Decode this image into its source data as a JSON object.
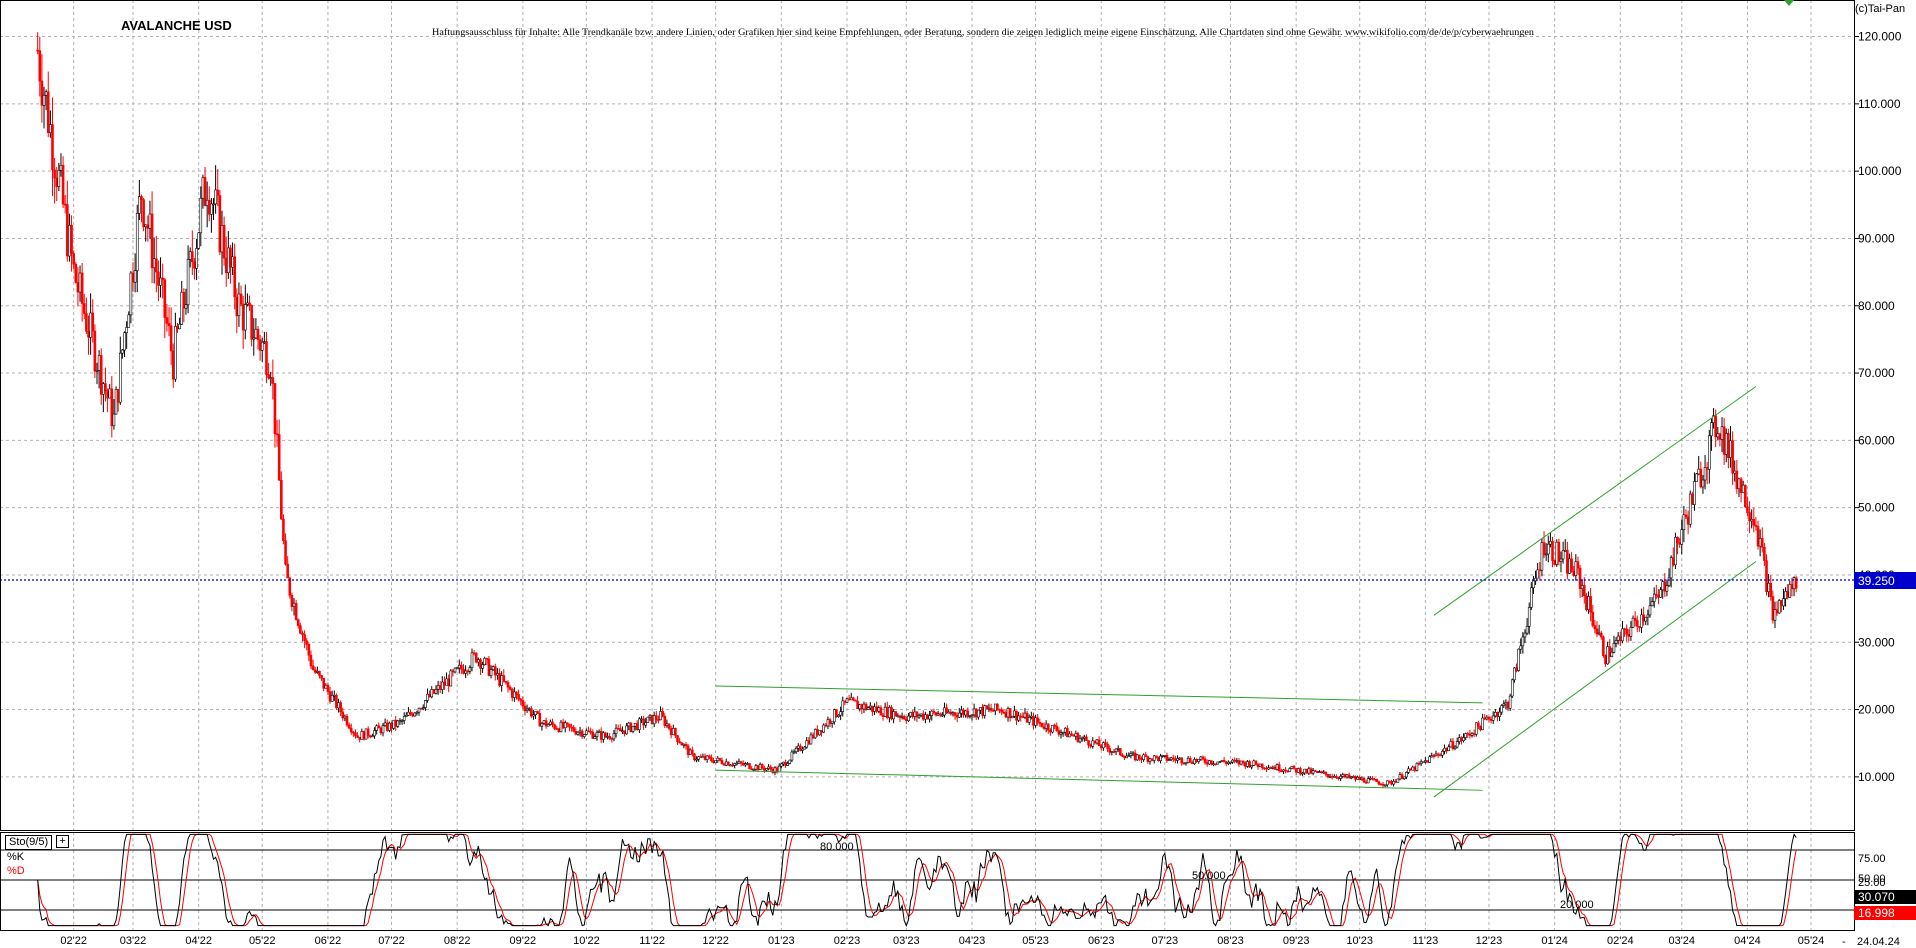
{
  "header": {
    "title": "AVALANCHE USD",
    "disclaimer": "Haftungsausschluss für Inhalte: Alle Trendkanäle bzw. andere Linien, oder Grafiken hier sind keine Empfehlungen, oder Beratung, sondern die zeigen lediglich meine eigene Einschätzung. Alle Chartdaten sind ohne Gewähr.  www.wikifolio.com/de/de/p/cyberwaehrungen",
    "copyright": "(c)Tai-Pan"
  },
  "colors": {
    "up_candle": "#000000",
    "down_candle": "#ff0000",
    "channel": "#2ea02e",
    "price_line": "#0000cc",
    "price_badge": "#0000cc",
    "k_line": "#000000",
    "d_line": "#ff0000",
    "k_badge": "#000000",
    "d_badge": "#ff0000"
  },
  "price_axis": {
    "ticks": [
      "10.000",
      "20.000",
      "30.000",
      "40.000",
      "50.000",
      "60.000",
      "70.000",
      "80.000",
      "90.000",
      "100.000",
      "110.000",
      "120.000"
    ]
  },
  "last_price": "39.250",
  "date_axis": {
    "ticks": [
      "02'22",
      "03'22",
      "04'22",
      "05'22",
      "06'22",
      "07'22",
      "08'22",
      "09'22",
      "10'22",
      "11'22",
      "12'22",
      "01'23",
      "02'23",
      "03'23",
      "04'23",
      "05'23",
      "06'23",
      "07'23",
      "08'23",
      "09'23",
      "10'23",
      "11'23",
      "12'23",
      "01'24",
      "02'24",
      "03'24",
      "04'24",
      "05'24"
    ],
    "current_date": "24.04.24",
    "separator": "-"
  },
  "stochastic": {
    "label": "Sto(9/5)",
    "button": "+",
    "k_label": "%K",
    "d_label": "%D",
    "k_value": "30.070",
    "d_value": "16.998",
    "axis_ticks": [
      "25.00",
      "50.00",
      "75.00"
    ],
    "level_labels": [
      "80.000",
      "50.000",
      "20.000"
    ]
  },
  "chart_data": {
    "type": "candlestick",
    "title": "AVALANCHE USD",
    "ylim": [
      0,
      125
    ],
    "grid": true,
    "key_points": [
      {
        "date": "2022-01-15",
        "close": 118
      },
      {
        "date": "2022-02-01",
        "close": 85
      },
      {
        "date": "2022-02-20",
        "close": 63
      },
      {
        "date": "2022-03-05",
        "close": 97
      },
      {
        "date": "2022-03-20",
        "close": 72
      },
      {
        "date": "2022-04-05",
        "close": 99
      },
      {
        "date": "2022-04-20",
        "close": 80
      },
      {
        "date": "2022-05-05",
        "close": 72
      },
      {
        "date": "2022-05-12",
        "close": 40
      },
      {
        "date": "2022-05-25",
        "close": 26
      },
      {
        "date": "2022-06-15",
        "close": 16
      },
      {
        "date": "2022-07-05",
        "close": 18
      },
      {
        "date": "2022-08-10",
        "close": 28
      },
      {
        "date": "2022-09-10",
        "close": 18
      },
      {
        "date": "2022-10-10",
        "close": 16
      },
      {
        "date": "2022-11-05",
        "close": 19
      },
      {
        "date": "2022-11-20",
        "close": 13
      },
      {
        "date": "2022-12-30",
        "close": 11
      },
      {
        "date": "2023-02-01",
        "close": 21
      },
      {
        "date": "2023-03-01",
        "close": 19
      },
      {
        "date": "2023-04-15",
        "close": 20
      },
      {
        "date": "2023-06-15",
        "close": 13
      },
      {
        "date": "2023-08-10",
        "close": 12
      },
      {
        "date": "2023-10-15",
        "close": 9
      },
      {
        "date": "2023-11-20",
        "close": 16
      },
      {
        "date": "2023-12-10",
        "close": 21
      },
      {
        "date": "2023-12-27",
        "close": 45
      },
      {
        "date": "2024-01-12",
        "close": 40
      },
      {
        "date": "2024-01-25",
        "close": 28
      },
      {
        "date": "2024-02-20",
        "close": 37
      },
      {
        "date": "2024-03-18",
        "close": 63
      },
      {
        "date": "2024-03-28",
        "close": 54
      },
      {
        "date": "2024-04-05",
        "close": 48
      },
      {
        "date": "2024-04-13",
        "close": 34
      },
      {
        "date": "2024-04-24",
        "close": 39.25
      }
    ],
    "trend_lines": [
      {
        "from": {
          "date": "2022-12-01",
          "price": 23.5
        },
        "to": {
          "date": "2023-11-28",
          "price": 21
        }
      },
      {
        "from": {
          "date": "2022-12-01",
          "price": 11
        },
        "to": {
          "date": "2023-11-28",
          "price": 8
        }
      },
      {
        "from": {
          "date": "2023-11-05",
          "price": 34
        },
        "to": {
          "date": "2024-04-05",
          "price": 68
        }
      },
      {
        "from": {
          "date": "2023-11-05",
          "price": 7
        },
        "to": {
          "date": "2024-04-05",
          "price": 42
        }
      }
    ],
    "stochastic": {
      "k": 30.07,
      "d": 16.998,
      "levels": [
        20,
        50,
        80
      ]
    }
  }
}
